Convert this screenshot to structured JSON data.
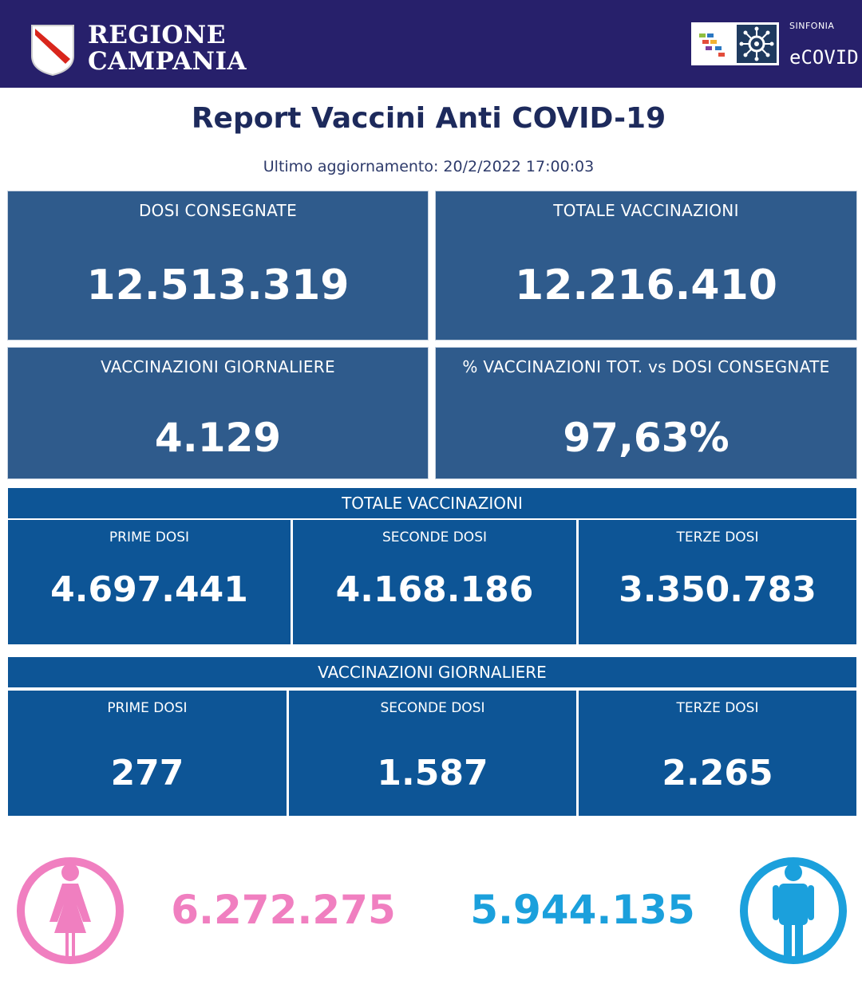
{
  "header": {
    "region_line1": "REGIONE",
    "region_line2": "CAMPANIA",
    "sinfonia": "SINFONIA",
    "ecovid": "eCOVID"
  },
  "title": "Report Vaccini Anti COVID-19",
  "updated": "Ultimo aggiornamento: 20/2/2022  17:00:03",
  "cards": [
    {
      "label": "DOSI  CONSEGNATE",
      "value": "12.513.319"
    },
    {
      "label": "TOTALE VACCINAZIONI",
      "value": "12.216.410"
    },
    {
      "label": "VACCINAZIONI GIORNALIERE",
      "value": "4.129"
    },
    {
      "label": "% VACCINAZIONI TOT. vs DOSI CONSEGNATE",
      "value": "97,63%"
    }
  ],
  "totale": {
    "title": "TOTALE VACCINAZIONI",
    "items": [
      {
        "label": "PRIME DOSI",
        "value": "4.697.441"
      },
      {
        "label": "SECONDE DOSI",
        "value": "4.168.186"
      },
      {
        "label": "TERZE DOSI",
        "value": "3.350.783"
      }
    ]
  },
  "giornaliere": {
    "title": "VACCINAZIONI GIORNALIERE",
    "items": [
      {
        "label": "PRIME DOSI",
        "value": "277"
      },
      {
        "label": "SECONDE DOSI",
        "value": "1.587"
      },
      {
        "label": "TERZE DOSI",
        "value": "2.265"
      }
    ]
  },
  "gender": {
    "female_value": "6.272.275",
    "male_value": "5.944.135",
    "female_color": "#f07fc0",
    "male_color": "#1ba0dc",
    "female_icon": "female-icon",
    "male_icon": "male-icon"
  },
  "colors": {
    "header_bg": "#27206b",
    "card_bg": "#2f5b8c",
    "band_bg": "#0d5596",
    "title": "#1d2a5c"
  }
}
